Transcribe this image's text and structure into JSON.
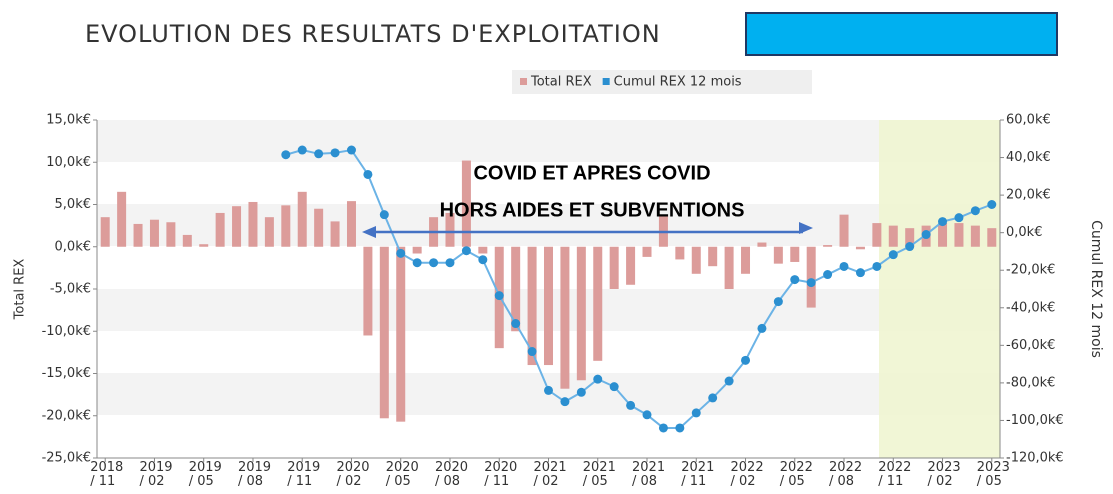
{
  "chart_data": {
    "type": "bar-line",
    "title": "EVOLUTION DES RESULTATS D'EXPLOITATION",
    "annotations": [
      "COVID ET APRES COVID",
      "HORS AIDES ET SUBVENTIONS"
    ],
    "y_label": "Total REX",
    "y2_label": "Cumul REX 12 mois",
    "categories": [
      "2018 / 11",
      null,
      null,
      "2019 / 02",
      null,
      null,
      "2019 / 05",
      null,
      null,
      "2019 / 08",
      null,
      null,
      "2019 / 11",
      null,
      null,
      "2020 / 02",
      null,
      null,
      "2020 / 05",
      null,
      null,
      "2020 / 08",
      null,
      null,
      "2020 / 11",
      null,
      null,
      "2021 / 02",
      null,
      null,
      "2021 / 05",
      null,
      null,
      "2021 / 08",
      null,
      null,
      "2021 / 11",
      null,
      null,
      "2022 / 02",
      null,
      null,
      "2022 / 05",
      null,
      null,
      "2022 / 08",
      null,
      null,
      "2022 / 11",
      null,
      null,
      "2023 / 02",
      null,
      null,
      "2023 / 05"
    ],
    "series": [
      {
        "name": "Total REX",
        "type": "bar",
        "color": "#dc9c9a",
        "values": [
          3.5,
          6.5,
          2.7,
          3.2,
          2.9,
          1.4,
          0.3,
          4.0,
          4.8,
          5.3,
          3.5,
          4.9,
          6.5,
          4.5,
          3.0,
          5.4,
          -10.5,
          -20.3,
          -20.7,
          -0.8,
          3.5,
          4.0,
          10.2,
          -0.8,
          -12.0,
          -10.0,
          -14.0,
          -14.0,
          -16.8,
          -15.8,
          -13.5,
          -5.0,
          -4.5,
          -1.2,
          3.8,
          -1.5,
          -3.2,
          -2.3,
          -5.0,
          -3.2,
          0.5,
          -2.0,
          -1.8,
          -7.2,
          0.2,
          3.8,
          -0.3,
          2.8,
          2.5,
          2.2,
          2.5,
          2.8,
          2.8,
          2.5,
          2.2
        ]
      },
      {
        "name": "Cumul REX 12 mois",
        "type": "line",
        "axis": "y2",
        "color": "#6bb3e6",
        "values": [
          null,
          null,
          null,
          null,
          null,
          null,
          null,
          null,
          null,
          null,
          null,
          41.5,
          44,
          42,
          42.5,
          44,
          31,
          9.6,
          -11,
          -16,
          -16,
          -16,
          -9.6,
          -14.4,
          -33.5,
          -48.4,
          -63.3,
          -84,
          -90,
          -85,
          -78,
          -82,
          -92,
          -97,
          -104,
          -104,
          -96,
          -88,
          -79,
          -68,
          -51,
          -36.7,
          -25,
          -26.6,
          -22.3,
          -18,
          -21.3,
          -18,
          -11.7,
          -7.4,
          -1,
          5.9,
          8,
          11.7,
          15
        ]
      }
    ],
    "ylim": [
      -25,
      15
    ],
    "yticks": [
      {
        "value": -25,
        "label": "-25,0k€"
      },
      {
        "value": -20,
        "label": "-20,0k€"
      },
      {
        "value": -15,
        "label": "-15,0k€"
      },
      {
        "value": -10,
        "label": "-10,0k€"
      },
      {
        "value": -5,
        "label": "-5,0k€"
      },
      {
        "value": 0,
        "label": "0,0k€"
      },
      {
        "value": 5,
        "label": "5,0k€"
      },
      {
        "value": 10,
        "label": "10,0k€"
      },
      {
        "value": 15,
        "label": "15,0k€"
      }
    ],
    "y2lim": [
      -120,
      60
    ],
    "y2ticks": [
      {
        "value": -120,
        "label": "-120,0k€"
      },
      {
        "value": -100,
        "label": "-100,0k€"
      },
      {
        "value": -80,
        "label": "-80,0k€"
      },
      {
        "value": -60,
        "label": "-60,0k€"
      },
      {
        "value": -40,
        "label": "-40,0k€"
      },
      {
        "value": -20,
        "label": "-20,0k€"
      },
      {
        "value": 0,
        "label": "0,0k€"
      },
      {
        "value": 20,
        "label": "20,0k€"
      },
      {
        "value": 40,
        "label": "40,0k€"
      },
      {
        "value": 60,
        "label": "60,0k€"
      }
    ],
    "legend": "top"
  }
}
